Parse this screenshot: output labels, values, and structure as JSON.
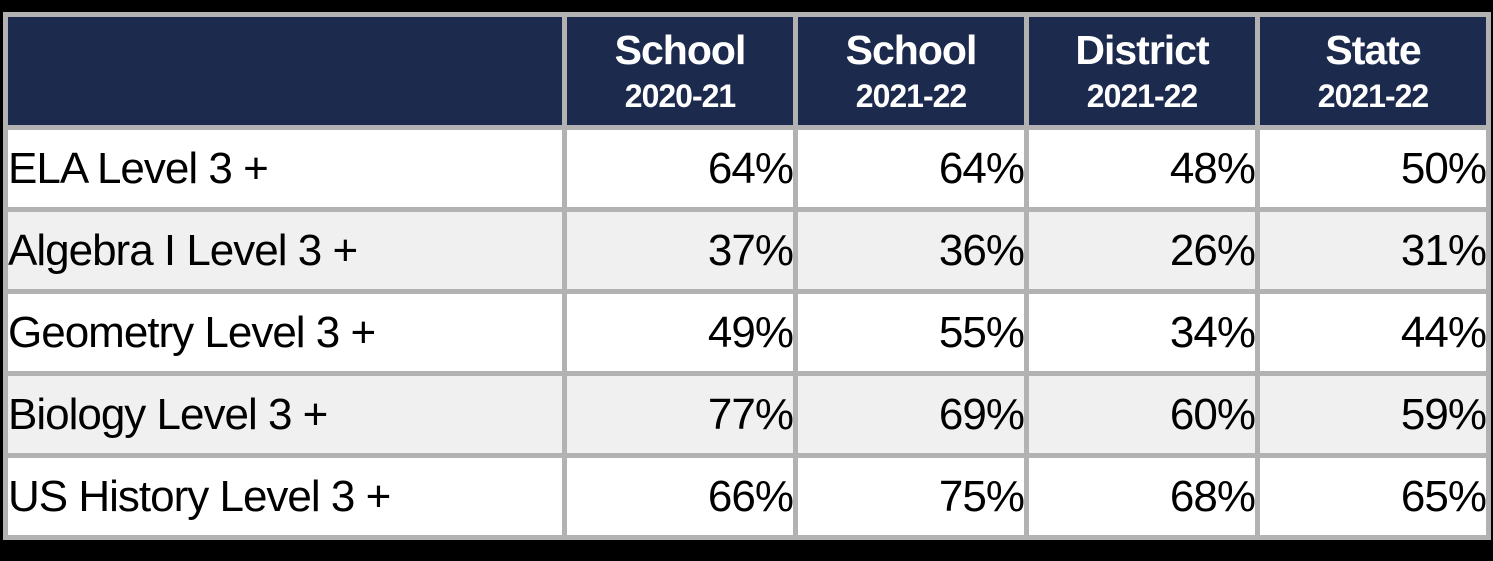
{
  "colors": {
    "header_bg": "#1c2a4d",
    "header_text": "#ffffff",
    "grid_border": "#b2b2b2",
    "row_bg": "#ffffff",
    "row_alt_bg": "#f1f0f0",
    "cell_text": "#000000",
    "outer_frame": "#000000"
  },
  "table": {
    "columns": [
      {
        "title": "School",
        "subtitle": "2020-21"
      },
      {
        "title": "School",
        "subtitle": "2021-22"
      },
      {
        "title": "District",
        "subtitle": "2021-22"
      },
      {
        "title": "State",
        "subtitle": "2021-22"
      }
    ],
    "rows": [
      {
        "label": "ELA Level 3 +",
        "values": [
          "64%",
          "64%",
          "48%",
          "50%"
        ]
      },
      {
        "label": "Algebra I Level 3 +",
        "values": [
          "37%",
          "36%",
          "26%",
          "31%"
        ]
      },
      {
        "label": "Geometry Level 3 +",
        "values": [
          "49%",
          "55%",
          "34%",
          "44%"
        ]
      },
      {
        "label": "Biology Level 3 +",
        "values": [
          "77%",
          "69%",
          "60%",
          "59%"
        ]
      },
      {
        "label": "US History Level 3 +",
        "values": [
          "66%",
          "75%",
          "68%",
          "65%"
        ]
      }
    ]
  },
  "chart_data": {
    "type": "table",
    "title": "",
    "unit": "%",
    "categories": [
      "ELA Level 3 +",
      "Algebra I Level 3 +",
      "Geometry Level 3 +",
      "Biology Level 3 +",
      "US History Level 3 +"
    ],
    "series": [
      {
        "name": "School 2020-21",
        "values": [
          64,
          37,
          49,
          77,
          66
        ]
      },
      {
        "name": "School 2021-22",
        "values": [
          64,
          36,
          55,
          69,
          75
        ]
      },
      {
        "name": "District 2021-22",
        "values": [
          48,
          26,
          34,
          60,
          68
        ]
      },
      {
        "name": "State 2021-22",
        "values": [
          50,
          31,
          44,
          59,
          65
        ]
      }
    ],
    "layout_hints": {
      "row_striping": "white / light-gray alternating",
      "header_style": "dark navy background, white bold two-line headers",
      "value_alignment": "right",
      "label_alignment": "left"
    }
  }
}
